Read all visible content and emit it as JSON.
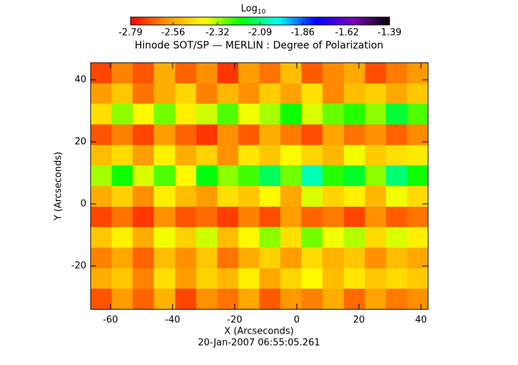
{
  "chart_data": {
    "type": "heatmap",
    "title": "Hinode SOT/SP — MERLIN : Degree of Polarization",
    "x_label": "X (Arcseconds)",
    "y_label": "Y (Arcseconds)",
    "footer": "20-Jan-2007 06:55:05.261",
    "colorbar_label": "Log",
    "colorbar_label_sub": "10",
    "colorbar_lim": [
      -2.79,
      -1.39
    ],
    "colorbar_ticks": [
      -2.79,
      -2.56,
      -2.32,
      -2.09,
      -1.86,
      -1.62,
      -1.39
    ],
    "colorscale": [
      "#ff0000",
      "#ff9900",
      "#ffff00",
      "#00ff00",
      "#00ffff",
      "#0000ff",
      "#8000c0",
      "#000000"
    ],
    "xlim": [
      -66.4,
      42.3
    ],
    "ylim": [
      -34,
      45.5
    ],
    "xticks": [
      -60,
      -40,
      -20,
      0,
      20,
      40
    ],
    "yticks": [
      -20,
      0,
      20,
      40
    ],
    "z": [
      [
        -2.7,
        -2.62,
        -2.68,
        -2.55,
        -2.66,
        -2.6,
        -2.72,
        -2.58,
        -2.64,
        -2.52,
        -2.67,
        -2.61,
        -2.56,
        -2.69,
        -2.63,
        -2.59
      ],
      [
        -2.58,
        -2.5,
        -2.64,
        -2.55,
        -2.47,
        -2.62,
        -2.53,
        -2.6,
        -2.49,
        -2.57,
        -2.45,
        -2.61,
        -2.52,
        -2.48,
        -2.56,
        -2.5
      ],
      [
        -2.45,
        -2.3,
        -2.4,
        -2.28,
        -2.42,
        -2.35,
        -2.25,
        -2.38,
        -2.32,
        -2.2,
        -2.36,
        -2.27,
        -2.22,
        -2.3,
        -2.15,
        -2.25
      ],
      [
        -2.68,
        -2.62,
        -2.7,
        -2.58,
        -2.66,
        -2.72,
        -2.6,
        -2.67,
        -2.55,
        -2.63,
        -2.69,
        -2.57,
        -2.64,
        -2.6,
        -2.66,
        -2.61
      ],
      [
        -2.52,
        -2.46,
        -2.58,
        -2.42,
        -2.55,
        -2.48,
        -2.6,
        -2.44,
        -2.5,
        -2.4,
        -2.47,
        -2.53,
        -2.38,
        -2.49,
        -2.45,
        -2.43
      ],
      [
        -2.32,
        -2.2,
        -2.36,
        -2.25,
        -2.4,
        -2.18,
        -2.3,
        -2.24,
        -2.12,
        -2.28,
        -2.05,
        -2.22,
        -2.16,
        -2.3,
        -2.1,
        -2.2
      ],
      [
        -2.55,
        -2.48,
        -2.6,
        -2.42,
        -2.52,
        -2.58,
        -2.45,
        -2.5,
        -2.4,
        -2.56,
        -2.36,
        -2.47,
        -2.42,
        -2.53,
        -2.38,
        -2.46
      ],
      [
        -2.7,
        -2.64,
        -2.72,
        -2.6,
        -2.68,
        -2.65,
        -2.71,
        -2.62,
        -2.69,
        -2.58,
        -2.66,
        -2.63,
        -2.7,
        -2.6,
        -2.67,
        -2.64
      ],
      [
        -2.5,
        -2.42,
        -2.55,
        -2.38,
        -2.48,
        -2.35,
        -2.52,
        -2.4,
        -2.3,
        -2.45,
        -2.28,
        -2.38,
        -2.33,
        -2.46,
        -2.36,
        -2.42
      ],
      [
        -2.62,
        -2.56,
        -2.66,
        -2.52,
        -2.6,
        -2.5,
        -2.64,
        -2.55,
        -2.48,
        -2.58,
        -2.46,
        -2.54,
        -2.5,
        -2.6,
        -2.52,
        -2.56
      ],
      [
        -2.55,
        -2.5,
        -2.62,
        -2.45,
        -2.58,
        -2.48,
        -2.53,
        -2.42,
        -2.56,
        -2.47,
        -2.4,
        -2.52,
        -2.44,
        -2.5,
        -2.46,
        -2.49
      ],
      [
        -2.68,
        -2.58,
        -2.66,
        -2.54,
        -2.7,
        -2.6,
        -2.64,
        -2.56,
        -2.67,
        -2.59,
        -2.62,
        -2.55,
        -2.65,
        -2.57,
        -2.63,
        -2.6
      ]
    ]
  }
}
